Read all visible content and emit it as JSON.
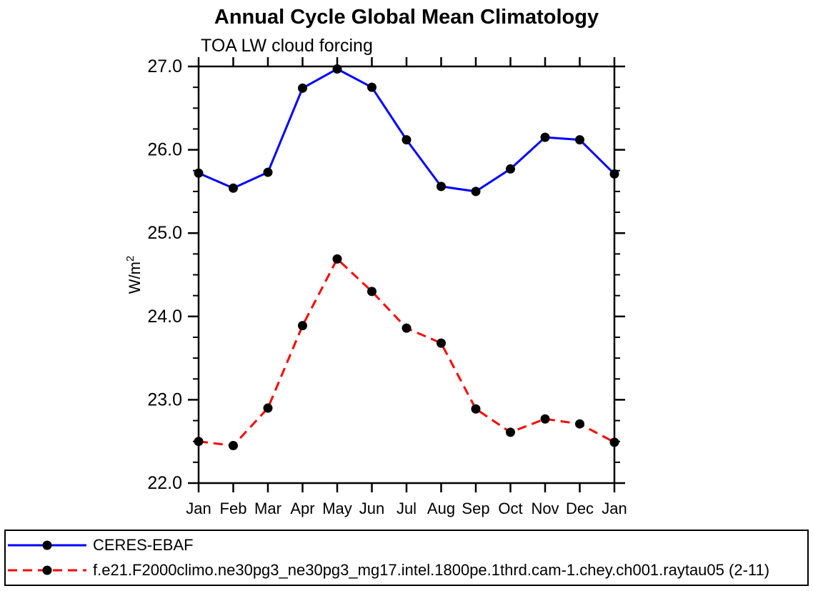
{
  "title": "Annual Cycle Global Mean Climatology",
  "chart_data": {
    "type": "line",
    "subtitle": "TOA LW cloud forcing",
    "ylabel": "W/m²",
    "ylabel_base": "W/m",
    "ylabel_sup": "2",
    "ylim": [
      22.0,
      27.0
    ],
    "ytick_step": 1.0,
    "yminor_step": 0.25,
    "ytick_labels": [
      "22.0",
      "23.0",
      "24.0",
      "25.0",
      "26.0",
      "27.0"
    ],
    "x_categories": [
      "Jan",
      "Feb",
      "Mar",
      "Apr",
      "May",
      "Jun",
      "Jul",
      "Aug",
      "Sep",
      "Oct",
      "Nov",
      "Dec",
      "Jan"
    ],
    "grid": false,
    "legend_position": "bottom",
    "frame_color": "#000000",
    "marker_color": "#000000",
    "series": [
      {
        "name": "CERES-EBAF",
        "color": "#0000ff",
        "style": "solid",
        "marker": "circle",
        "values": [
          25.72,
          25.54,
          25.73,
          26.74,
          26.97,
          26.75,
          26.12,
          25.56,
          25.5,
          25.77,
          26.15,
          26.12,
          25.71
        ]
      },
      {
        "name": "f.e21.F2000climo.ne30pg3_ne30pg3_mg17.intel.1800pe.1thrd.cam-1.chey.ch001.raytau05 (2-11)",
        "color": "#ff0000",
        "style": "dashed",
        "marker": "circle",
        "values": [
          22.5,
          22.45,
          22.9,
          23.89,
          24.69,
          24.3,
          23.86,
          23.68,
          22.89,
          22.61,
          22.77,
          22.71,
          22.49
        ]
      }
    ]
  }
}
